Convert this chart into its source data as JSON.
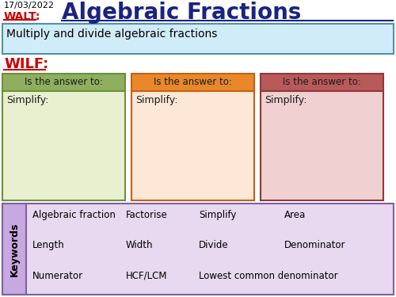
{
  "title": "Algebraic Fractions",
  "date": "17/03/2022",
  "walt_label": "WALT:",
  "walt_text": "Multiply and divide algebraic fractions",
  "wilf_label": "WILF:",
  "col_header": "Is the answer to:",
  "col_body": "Simplify:",
  "col_headers_bg": [
    "#8faf5f",
    "#e8882a",
    "#b85a5a"
  ],
  "col_headers_border": [
    "#6a9040",
    "#c86010",
    "#903838"
  ],
  "col_body_bg": [
    "#e8f0d0",
    "#fde8d8",
    "#f0d0d0"
  ],
  "col_body_border": [
    "#6a9040",
    "#c86010",
    "#903838"
  ],
  "walt_box_bg": "#d0ecf8",
  "walt_box_border": "#5090b0",
  "keywords_box_bg": "#e8d8f0",
  "keywords_box_border": "#8060a0",
  "keywords_side_bg": "#c8a8e0",
  "keywords_label": "Keywords",
  "keywords_rows": [
    [
      "Algebraic fraction",
      "Factorise",
      "Simplify",
      "Area"
    ],
    [
      "Length",
      "Width",
      "Divide",
      "Denominator"
    ],
    [
      "Numerator",
      "HCF/LCM",
      "Lowest common denominator",
      ""
    ]
  ],
  "title_color": "#1a237e",
  "walt_color": "#cc0000",
  "wilf_color": "#cc0000",
  "header_text_color": "#1a1a1a",
  "body_text_color": "#1a1a1a",
  "bg_color": "#ffffff"
}
